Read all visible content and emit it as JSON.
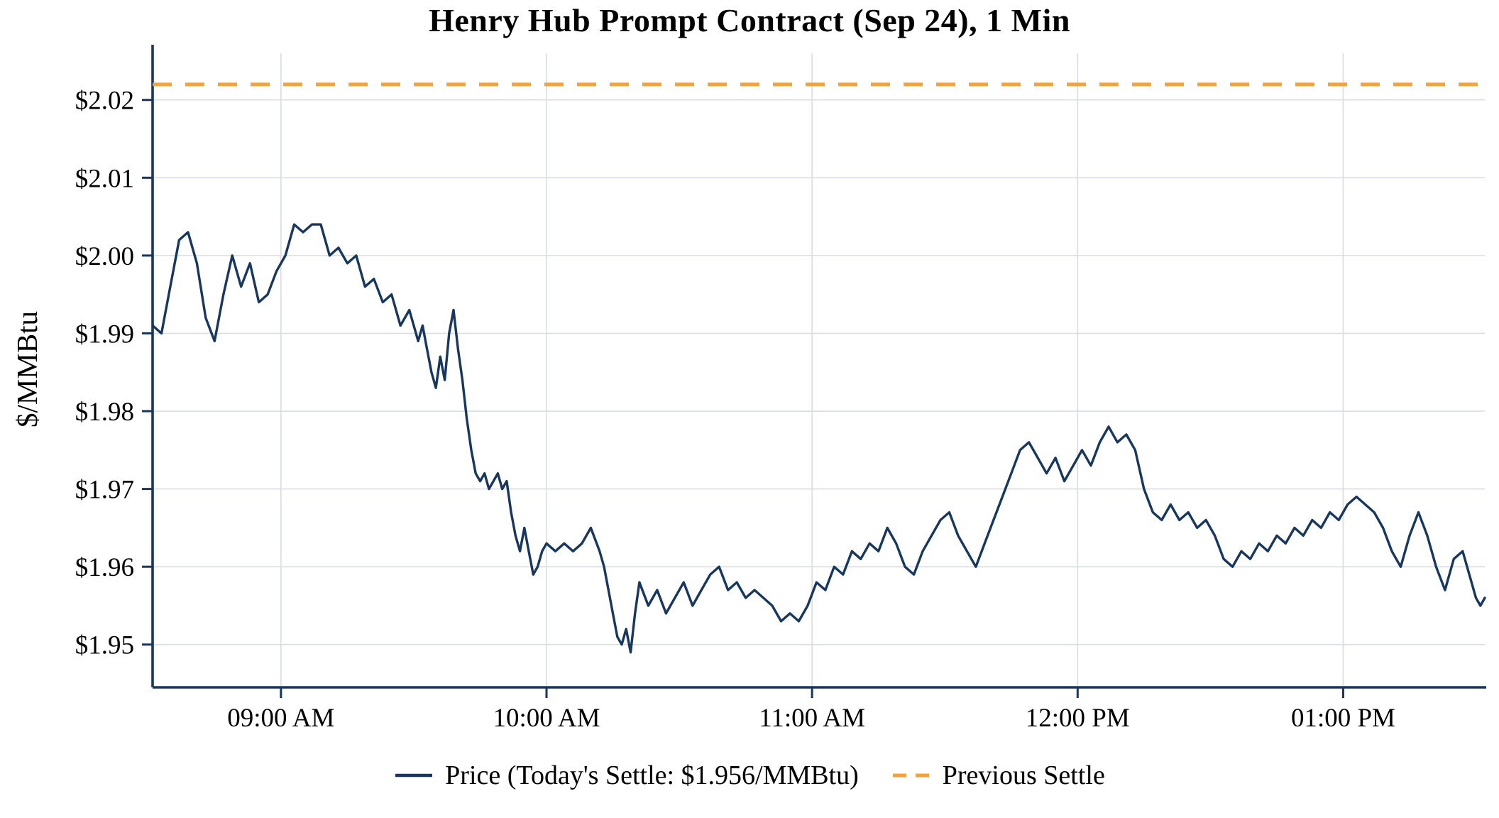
{
  "chart_data": {
    "type": "line",
    "title": "Henry Hub Prompt Contract (Sep 24), 1 Min",
    "ylabel": "$/MMBtu",
    "xlabel": "",
    "x_unit": "minute-of-day",
    "xlim": [
      511,
      812
    ],
    "ylim": [
      1.9445,
      2.026
    ],
    "grid": true,
    "axis_color": "#17375e",
    "grid_color": "#d9dde3",
    "x_ticks": [
      {
        "v": 540,
        "label": "09:00 AM"
      },
      {
        "v": 600,
        "label": "10:00 AM"
      },
      {
        "v": 660,
        "label": "11:00 AM"
      },
      {
        "v": 720,
        "label": "12:00 PM"
      },
      {
        "v": 780,
        "label": "01:00 PM"
      }
    ],
    "y_ticks": [
      {
        "v": 1.95,
        "label": "$1.95"
      },
      {
        "v": 1.96,
        "label": "$1.96"
      },
      {
        "v": 1.97,
        "label": "$1.97"
      },
      {
        "v": 1.98,
        "label": "$1.98"
      },
      {
        "v": 1.99,
        "label": "$1.99"
      },
      {
        "v": 2.0,
        "label": "$2.00"
      },
      {
        "v": 2.01,
        "label": "$2.01"
      },
      {
        "v": 2.02,
        "label": "$2.02"
      }
    ],
    "previous_settle": {
      "value": 2.022,
      "label": "Previous Settle",
      "color": "#f7a239"
    },
    "today_settle": 1.956,
    "series": [
      {
        "name": "Price (Today's Settle: $1.956/MMBtu)",
        "color": "#17375e",
        "points": [
          [
            511,
            1.991
          ],
          [
            513,
            1.99
          ],
          [
            515,
            1.996
          ],
          [
            517,
            2.002
          ],
          [
            519,
            2.003
          ],
          [
            521,
            1.999
          ],
          [
            523,
            1.992
          ],
          [
            525,
            1.989
          ],
          [
            527,
            1.995
          ],
          [
            529,
            2.0
          ],
          [
            531,
            1.996
          ],
          [
            533,
            1.999
          ],
          [
            535,
            1.994
          ],
          [
            537,
            1.995
          ],
          [
            539,
            1.998
          ],
          [
            541,
            2.0
          ],
          [
            543,
            2.004
          ],
          [
            545,
            2.003
          ],
          [
            547,
            2.004
          ],
          [
            549,
            2.004
          ],
          [
            551,
            2.0
          ],
          [
            553,
            2.001
          ],
          [
            555,
            1.999
          ],
          [
            557,
            2.0
          ],
          [
            559,
            1.996
          ],
          [
            561,
            1.997
          ],
          [
            563,
            1.994
          ],
          [
            565,
            1.995
          ],
          [
            567,
            1.991
          ],
          [
            569,
            1.993
          ],
          [
            571,
            1.989
          ],
          [
            572,
            1.991
          ],
          [
            573,
            1.988
          ],
          [
            574,
            1.985
          ],
          [
            575,
            1.983
          ],
          [
            576,
            1.987
          ],
          [
            577,
            1.984
          ],
          [
            578,
            1.99
          ],
          [
            579,
            1.993
          ],
          [
            580,
            1.988
          ],
          [
            581,
            1.984
          ],
          [
            582,
            1.979
          ],
          [
            583,
            1.975
          ],
          [
            584,
            1.972
          ],
          [
            585,
            1.971
          ],
          [
            586,
            1.972
          ],
          [
            587,
            1.97
          ],
          [
            588,
            1.971
          ],
          [
            589,
            1.972
          ],
          [
            590,
            1.97
          ],
          [
            591,
            1.971
          ],
          [
            592,
            1.967
          ],
          [
            593,
            1.964
          ],
          [
            594,
            1.962
          ],
          [
            595,
            1.965
          ],
          [
            596,
            1.962
          ],
          [
            597,
            1.959
          ],
          [
            598,
            1.96
          ],
          [
            599,
            1.962
          ],
          [
            600,
            1.963
          ],
          [
            602,
            1.962
          ],
          [
            604,
            1.963
          ],
          [
            606,
            1.962
          ],
          [
            608,
            1.963
          ],
          [
            610,
            1.965
          ],
          [
            612,
            1.962
          ],
          [
            613,
            1.96
          ],
          [
            614,
            1.957
          ],
          [
            615,
            1.954
          ],
          [
            616,
            1.951
          ],
          [
            617,
            1.95
          ],
          [
            618,
            1.952
          ],
          [
            619,
            1.949
          ],
          [
            620,
            1.954
          ],
          [
            621,
            1.958
          ],
          [
            623,
            1.955
          ],
          [
            625,
            1.957
          ],
          [
            627,
            1.954
          ],
          [
            629,
            1.956
          ],
          [
            631,
            1.958
          ],
          [
            633,
            1.955
          ],
          [
            635,
            1.957
          ],
          [
            637,
            1.959
          ],
          [
            639,
            1.96
          ],
          [
            641,
            1.957
          ],
          [
            643,
            1.958
          ],
          [
            645,
            1.956
          ],
          [
            647,
            1.957
          ],
          [
            649,
            1.956
          ],
          [
            651,
            1.955
          ],
          [
            653,
            1.953
          ],
          [
            655,
            1.954
          ],
          [
            657,
            1.953
          ],
          [
            659,
            1.955
          ],
          [
            661,
            1.958
          ],
          [
            663,
            1.957
          ],
          [
            665,
            1.96
          ],
          [
            667,
            1.959
          ],
          [
            669,
            1.962
          ],
          [
            671,
            1.961
          ],
          [
            673,
            1.963
          ],
          [
            675,
            1.962
          ],
          [
            677,
            1.965
          ],
          [
            679,
            1.963
          ],
          [
            681,
            1.96
          ],
          [
            683,
            1.959
          ],
          [
            685,
            1.962
          ],
          [
            687,
            1.964
          ],
          [
            689,
            1.966
          ],
          [
            691,
            1.967
          ],
          [
            693,
            1.964
          ],
          [
            695,
            1.962
          ],
          [
            697,
            1.96
          ],
          [
            699,
            1.963
          ],
          [
            701,
            1.966
          ],
          [
            703,
            1.969
          ],
          [
            705,
            1.972
          ],
          [
            707,
            1.975
          ],
          [
            709,
            1.976
          ],
          [
            711,
            1.974
          ],
          [
            713,
            1.972
          ],
          [
            715,
            1.974
          ],
          [
            717,
            1.971
          ],
          [
            719,
            1.973
          ],
          [
            721,
            1.975
          ],
          [
            723,
            1.973
          ],
          [
            725,
            1.976
          ],
          [
            727,
            1.978
          ],
          [
            729,
            1.976
          ],
          [
            731,
            1.977
          ],
          [
            733,
            1.975
          ],
          [
            735,
            1.97
          ],
          [
            737,
            1.967
          ],
          [
            739,
            1.966
          ],
          [
            741,
            1.968
          ],
          [
            743,
            1.966
          ],
          [
            745,
            1.967
          ],
          [
            747,
            1.965
          ],
          [
            749,
            1.966
          ],
          [
            751,
            1.964
          ],
          [
            753,
            1.961
          ],
          [
            755,
            1.96
          ],
          [
            757,
            1.962
          ],
          [
            759,
            1.961
          ],
          [
            761,
            1.963
          ],
          [
            763,
            1.962
          ],
          [
            765,
            1.964
          ],
          [
            767,
            1.963
          ],
          [
            769,
            1.965
          ],
          [
            771,
            1.964
          ],
          [
            773,
            1.966
          ],
          [
            775,
            1.965
          ],
          [
            777,
            1.967
          ],
          [
            779,
            1.966
          ],
          [
            781,
            1.968
          ],
          [
            783,
            1.969
          ],
          [
            785,
            1.968
          ],
          [
            787,
            1.967
          ],
          [
            789,
            1.965
          ],
          [
            791,
            1.962
          ],
          [
            793,
            1.96
          ],
          [
            795,
            1.964
          ],
          [
            797,
            1.967
          ],
          [
            799,
            1.964
          ],
          [
            801,
            1.96
          ],
          [
            803,
            1.957
          ],
          [
            805,
            1.961
          ],
          [
            807,
            1.962
          ],
          [
            809,
            1.958
          ],
          [
            810,
            1.956
          ],
          [
            811,
            1.955
          ],
          [
            812,
            1.956
          ]
        ]
      }
    ],
    "legend": {
      "position": "bottom",
      "items": [
        "Price (Today's Settle: $1.956/MMBtu)",
        "Previous Settle"
      ]
    }
  }
}
